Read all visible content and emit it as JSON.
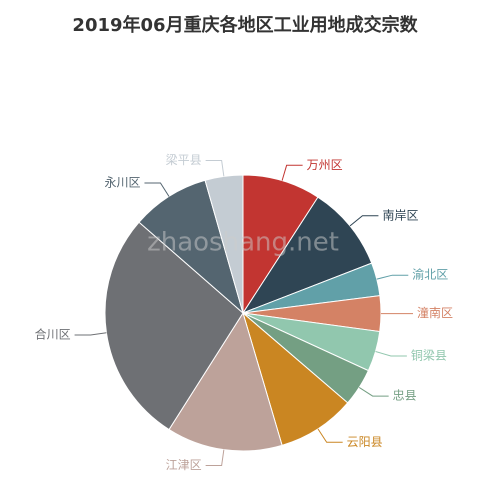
{
  "chart_data": {
    "type": "pie",
    "title": "2019年06月重庆各地区工业用地成交宗数",
    "watermark": "zhaoshang.net",
    "categories": [
      "万州区",
      "南岸区",
      "渝北区",
      "潼南区",
      "铜梁县",
      "忠县",
      "云阳县",
      "江津区",
      "合川区",
      "永川区",
      "梁平县"
    ],
    "values": [
      33,
      36,
      14,
      15,
      17,
      16,
      33,
      49,
      99,
      33,
      16
    ],
    "colors": [
      "#c23531",
      "#2f4554",
      "#61a0a8",
      "#d48265",
      "#91c7ae",
      "#749f83",
      "#ca8622",
      "#bda29a",
      "#6e7074",
      "#546570",
      "#c4ccd3"
    ]
  }
}
